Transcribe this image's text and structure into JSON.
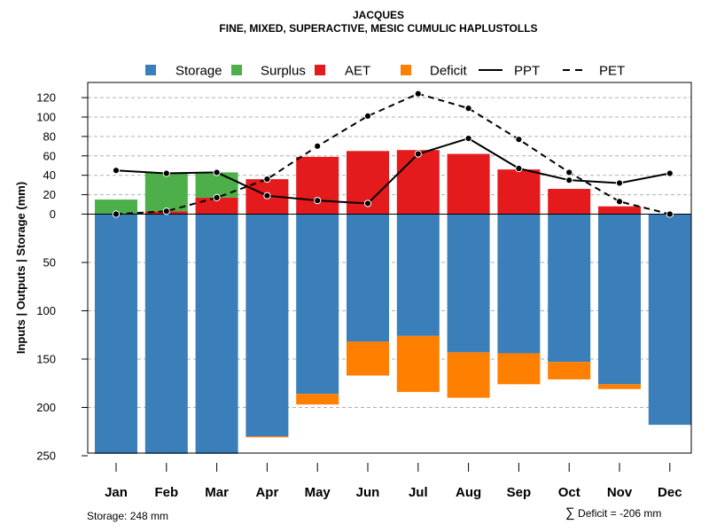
{
  "colors": {
    "storage": "#3A7FB9",
    "surplus": "#4DAF4A",
    "aet": "#E41A1C",
    "deficit": "#FF7F00",
    "grid": "#b0b0b0"
  },
  "chart_data": {
    "type": "bar",
    "title": "JACQUES",
    "subtitle": "FINE, MIXED, SUPERACTIVE, MESIC CUMULIC HAPLUSTOLLS",
    "ylabel": "Inputs | Outputs | Storage     (mm)",
    "categories": [
      "Jan",
      "Feb",
      "Mar",
      "Apr",
      "May",
      "Jun",
      "Jul",
      "Aug",
      "Sep",
      "Oct",
      "Nov",
      "Dec"
    ],
    "legend": [
      {
        "name": "Storage",
        "kind": "box",
        "color_key": "storage"
      },
      {
        "name": "Surplus",
        "kind": "box",
        "color_key": "surplus"
      },
      {
        "name": "AET",
        "kind": "box",
        "color_key": "aet"
      },
      {
        "name": "Deficit",
        "kind": "box",
        "color_key": "deficit"
      },
      {
        "name": "PPT",
        "kind": "solid"
      },
      {
        "name": "PET",
        "kind": "dashed"
      }
    ],
    "upper_axis": {
      "range": [
        0,
        130
      ],
      "ticks": [
        0,
        20,
        40,
        60,
        80,
        100,
        120
      ],
      "tick_labels": [
        "0",
        "20",
        "40",
        "60",
        "80",
        "100",
        "120"
      ]
    },
    "lower_axis": {
      "range": [
        0,
        250
      ],
      "ticks": [
        50,
        100,
        150,
        200,
        250
      ],
      "tick_labels": [
        "50",
        "100",
        "150",
        "200",
        "250"
      ]
    },
    "series": [
      {
        "name": "AET",
        "values": [
          0,
          3,
          17,
          36,
          59,
          65,
          66,
          62,
          46,
          26,
          8,
          0
        ]
      },
      {
        "name": "Surplus",
        "values": [
          15,
          40,
          26,
          0,
          0,
          0,
          0,
          0,
          0,
          0,
          0,
          0
        ]
      },
      {
        "name": "Storage",
        "values": [
          248,
          248,
          248,
          230,
          186,
          132,
          126,
          143,
          144,
          153,
          176,
          218
        ]
      },
      {
        "name": "Deficit",
        "values": [
          0,
          0,
          0,
          1,
          11,
          35,
          58,
          47,
          32,
          18,
          5,
          0
        ]
      },
      {
        "name": "PPT",
        "values": [
          45,
          42,
          43,
          19,
          14,
          11,
          62,
          78,
          47,
          35,
          32,
          42
        ]
      },
      {
        "name": "PET",
        "values": [
          0,
          3,
          17,
          36,
          70,
          101,
          124,
          109,
          77,
          43,
          13,
          0
        ]
      }
    ]
  },
  "footer": {
    "storage_label": "Storage: 248 mm",
    "deficit_symbol": "∑",
    "deficit_label": "Deficit = -206 mm"
  }
}
